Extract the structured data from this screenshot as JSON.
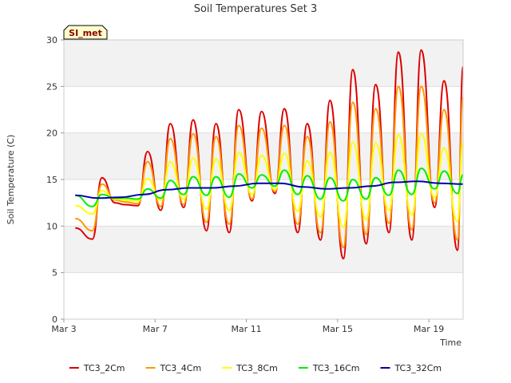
{
  "chart_data": {
    "type": "line",
    "title": "Soil Temperatures Set 3",
    "xlabel": "Time",
    "ylabel": "Soil Temperature (C)",
    "badge": "SI_met",
    "xlim": [
      "2024-03-03",
      "2024-03-20T12:00"
    ],
    "ylim": [
      0,
      30
    ],
    "yticks": [
      0,
      5,
      10,
      15,
      20,
      25,
      30
    ],
    "xticks": [
      {
        "date": "2024-03-03",
        "label": "Mar 3"
      },
      {
        "date": "2024-03-07",
        "label": "Mar 7"
      },
      {
        "date": "2024-03-11",
        "label": "Mar 11"
      },
      {
        "date": "2024-03-15",
        "label": "Mar 15"
      },
      {
        "date": "2024-03-19",
        "label": "Mar 19"
      }
    ],
    "grid": "horizontal bands",
    "legend": "bottom",
    "series": [
      {
        "name": "TC3_2Cm",
        "color": "#dd0000",
        "x": [
          "2024-03-03T12:00",
          "2024-03-04T06:00",
          "2024-03-04T16:00",
          "2024-03-05T06:00",
          "2024-03-05T16:00",
          "2024-03-06T06:00",
          "2024-03-06T16:00",
          "2024-03-07T06:00",
          "2024-03-07T16:00",
          "2024-03-08T06:00",
          "2024-03-08T16:00",
          "2024-03-09T06:00",
          "2024-03-09T16:00",
          "2024-03-10T06:00",
          "2024-03-10T16:00",
          "2024-03-11T06:00",
          "2024-03-11T16:00",
          "2024-03-12T06:00",
          "2024-03-12T16:00",
          "2024-03-13T06:00",
          "2024-03-13T16:00",
          "2024-03-14T06:00",
          "2024-03-14T16:00",
          "2024-03-15T06:00",
          "2024-03-15T16:00",
          "2024-03-16T06:00",
          "2024-03-16T16:00",
          "2024-03-17T06:00",
          "2024-03-17T16:00",
          "2024-03-18T06:00",
          "2024-03-18T16:00",
          "2024-03-19T06:00",
          "2024-03-19T16:00",
          "2024-03-20T06:00",
          "2024-03-20T12:00"
        ],
        "y": [
          9.8,
          8.6,
          15.2,
          12.5,
          12.3,
          12.2,
          18.0,
          11.7,
          21.0,
          12.0,
          21.4,
          9.5,
          21.0,
          9.3,
          22.5,
          12.7,
          22.3,
          13.5,
          22.6,
          9.3,
          21.0,
          8.5,
          23.5,
          6.5,
          26.8,
          8.1,
          25.2,
          9.3,
          28.7,
          8.5,
          28.9,
          12.0,
          25.6,
          7.4,
          27.1
        ]
      },
      {
        "name": "TC3_4Cm",
        "color": "#ff9900",
        "x": [
          "2024-03-03T12:00",
          "2024-03-04T06:00",
          "2024-03-04T16:00",
          "2024-03-05T06:00",
          "2024-03-05T16:00",
          "2024-03-06T06:00",
          "2024-03-06T16:00",
          "2024-03-07T06:00",
          "2024-03-07T16:00",
          "2024-03-08T06:00",
          "2024-03-08T16:00",
          "2024-03-09T06:00",
          "2024-03-09T16:00",
          "2024-03-10T06:00",
          "2024-03-10T16:00",
          "2024-03-11T06:00",
          "2024-03-11T16:00",
          "2024-03-12T06:00",
          "2024-03-12T16:00",
          "2024-03-13T06:00",
          "2024-03-13T16:00",
          "2024-03-14T06:00",
          "2024-03-14T16:00",
          "2024-03-15T06:00",
          "2024-03-15T16:00",
          "2024-03-16T06:00",
          "2024-03-16T16:00",
          "2024-03-17T06:00",
          "2024-03-17T16:00",
          "2024-03-18T06:00",
          "2024-03-18T16:00",
          "2024-03-19T06:00",
          "2024-03-19T16:00",
          "2024-03-20T06:00",
          "2024-03-20T12:00"
        ],
        "y": [
          10.8,
          9.5,
          14.5,
          12.8,
          12.6,
          12.4,
          16.9,
          12.1,
          19.4,
          12.3,
          19.9,
          10.4,
          19.6,
          10.2,
          20.8,
          12.9,
          20.5,
          13.7,
          20.8,
          10.2,
          19.6,
          9.3,
          21.2,
          7.7,
          23.3,
          9.1,
          22.6,
          10.3,
          25.0,
          9.6,
          25.0,
          12.5,
          22.5,
          8.5,
          23.8
        ]
      },
      {
        "name": "TC3_8Cm",
        "color": "#ffff00",
        "x": [
          "2024-03-03T12:00",
          "2024-03-04T06:00",
          "2024-03-04T16:00",
          "2024-03-05T06:00",
          "2024-03-05T16:00",
          "2024-03-06T06:00",
          "2024-03-06T16:00",
          "2024-03-07T06:00",
          "2024-03-07T16:00",
          "2024-03-08T06:00",
          "2024-03-08T16:00",
          "2024-03-09T06:00",
          "2024-03-09T16:00",
          "2024-03-10T06:00",
          "2024-03-10T16:00",
          "2024-03-11T06:00",
          "2024-03-11T16:00",
          "2024-03-12T06:00",
          "2024-03-12T16:00",
          "2024-03-13T06:00",
          "2024-03-13T16:00",
          "2024-03-14T06:00",
          "2024-03-14T16:00",
          "2024-03-15T06:00",
          "2024-03-15T16:00",
          "2024-03-16T06:00",
          "2024-03-16T16:00",
          "2024-03-17T06:00",
          "2024-03-17T16:00",
          "2024-03-18T06:00",
          "2024-03-18T16:00",
          "2024-03-19T06:00",
          "2024-03-19T16:00",
          "2024-03-20T06:00",
          "2024-03-20T12:00"
        ],
        "y": [
          12.2,
          11.3,
          13.8,
          12.9,
          12.8,
          12.7,
          15.1,
          12.8,
          16.9,
          12.9,
          17.3,
          11.8,
          17.2,
          11.7,
          17.9,
          13.4,
          17.6,
          13.9,
          17.8,
          11.6,
          17.0,
          11.0,
          17.9,
          9.9,
          19.0,
          10.7,
          18.9,
          11.7,
          19.8,
          11.2,
          19.9,
          13.1,
          18.4,
          10.5,
          19.0
        ]
      },
      {
        "name": "TC3_16Cm",
        "color": "#00ee00",
        "x": [
          "2024-03-03T12:00",
          "2024-03-04T06:00",
          "2024-03-04T16:00",
          "2024-03-05T06:00",
          "2024-03-05T16:00",
          "2024-03-06T06:00",
          "2024-03-06T16:00",
          "2024-03-07T06:00",
          "2024-03-07T16:00",
          "2024-03-08T06:00",
          "2024-03-08T16:00",
          "2024-03-09T06:00",
          "2024-03-09T16:00",
          "2024-03-10T06:00",
          "2024-03-10T16:00",
          "2024-03-11T06:00",
          "2024-03-11T16:00",
          "2024-03-12T06:00",
          "2024-03-12T16:00",
          "2024-03-13T06:00",
          "2024-03-13T16:00",
          "2024-03-14T06:00",
          "2024-03-14T16:00",
          "2024-03-15T06:00",
          "2024-03-15T16:00",
          "2024-03-16T06:00",
          "2024-03-16T16:00",
          "2024-03-17T06:00",
          "2024-03-17T16:00",
          "2024-03-18T06:00",
          "2024-03-18T16:00",
          "2024-03-19T06:00",
          "2024-03-19T16:00",
          "2024-03-20T06:00",
          "2024-03-20T12:00"
        ],
        "y": [
          13.3,
          12.1,
          13.4,
          13.0,
          13.0,
          12.9,
          14.0,
          13.0,
          14.9,
          13.4,
          15.3,
          13.3,
          15.3,
          13.1,
          15.6,
          14.1,
          15.5,
          14.3,
          16.0,
          13.4,
          15.4,
          12.9,
          15.2,
          12.7,
          15.0,
          12.9,
          15.2,
          13.3,
          16.0,
          13.4,
          16.2,
          14.0,
          15.9,
          13.5,
          15.5
        ]
      },
      {
        "name": "TC3_32Cm",
        "color": "#0000aa",
        "x": [
          "2024-03-03T12:00",
          "2024-03-04T12:00",
          "2024-03-05T12:00",
          "2024-03-06T12:00",
          "2024-03-07T12:00",
          "2024-03-08T12:00",
          "2024-03-09T12:00",
          "2024-03-10T12:00",
          "2024-03-11T12:00",
          "2024-03-12T12:00",
          "2024-03-13T12:00",
          "2024-03-14T12:00",
          "2024-03-15T12:00",
          "2024-03-16T12:00",
          "2024-03-17T12:00",
          "2024-03-18T12:00",
          "2024-03-19T12:00",
          "2024-03-20T12:00"
        ],
        "y": [
          13.3,
          13.0,
          13.1,
          13.4,
          13.9,
          14.1,
          14.1,
          14.3,
          14.6,
          14.6,
          14.2,
          14.0,
          14.1,
          14.3,
          14.7,
          14.8,
          14.6,
          14.5
        ]
      }
    ]
  }
}
